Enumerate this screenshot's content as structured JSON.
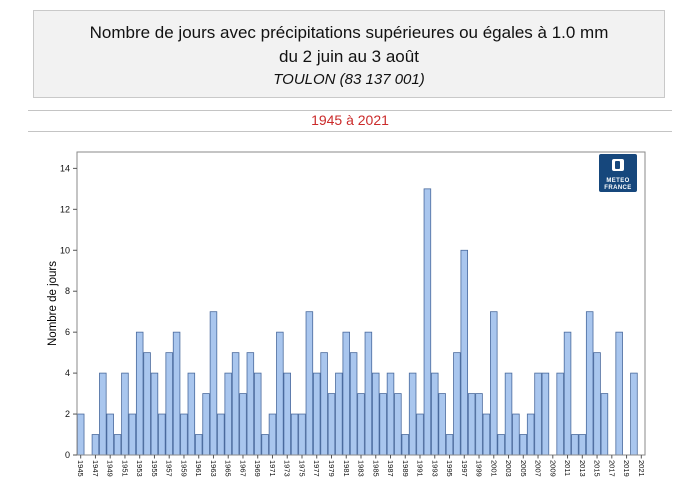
{
  "header": {
    "title_line1": "Nombre de jours avec précipitations supérieures ou égales à  1.0 mm",
    "title_line2": "du 2 juin au 3 août",
    "title_line3": "TOULON (83 137 001)"
  },
  "period": {
    "label": "1945 à 2021",
    "color": "#cb2b2b"
  },
  "logo": {
    "line1": "METEO",
    "line2": "FRANCE",
    "bg_color": "#16477c"
  },
  "chart_data": {
    "type": "bar",
    "title": "",
    "xlabel": "",
    "ylabel": "Nombre de jours",
    "categories": [
      1945,
      1946,
      1947,
      1948,
      1949,
      1950,
      1951,
      1952,
      1953,
      1954,
      1955,
      1956,
      1957,
      1958,
      1959,
      1960,
      1961,
      1962,
      1963,
      1964,
      1965,
      1966,
      1967,
      1968,
      1969,
      1970,
      1971,
      1972,
      1973,
      1974,
      1975,
      1976,
      1977,
      1978,
      1979,
      1980,
      1981,
      1982,
      1983,
      1984,
      1985,
      1986,
      1987,
      1988,
      1989,
      1990,
      1991,
      1992,
      1993,
      1994,
      1995,
      1996,
      1997,
      1998,
      1999,
      2000,
      2001,
      2002,
      2003,
      2004,
      2005,
      2006,
      2007,
      2008,
      2009,
      2010,
      2011,
      2012,
      2013,
      2014,
      2015,
      2016,
      2017,
      2018,
      2019,
      2020,
      2021
    ],
    "values": [
      2,
      0,
      1,
      4,
      2,
      1,
      4,
      2,
      6,
      5,
      4,
      2,
      5,
      6,
      2,
      4,
      1,
      3,
      7,
      2,
      4,
      5,
      3,
      5,
      4,
      1,
      2,
      6,
      4,
      2,
      2,
      7,
      4,
      5,
      3,
      4,
      6,
      5,
      3,
      6,
      4,
      3,
      4,
      3,
      1,
      4,
      2,
      13,
      4,
      3,
      1,
      5,
      10,
      3,
      3,
      2,
      7,
      1,
      4,
      2,
      1,
      2,
      4,
      4,
      0,
      4,
      6,
      1,
      1,
      7,
      5,
      3,
      0,
      6,
      0,
      4,
      0
    ],
    "ylim": [
      0,
      14.8
    ],
    "yticks": [
      0,
      2,
      4,
      6,
      8,
      10,
      12,
      14
    ],
    "xtick_step": 2,
    "grid": false,
    "legend": false,
    "bar_fill": "#a9c6ee",
    "bar_stroke": "#4a6a9d",
    "frame_color": "#8a8a8a",
    "tick_color": "#555555",
    "label_color": "#111111"
  }
}
